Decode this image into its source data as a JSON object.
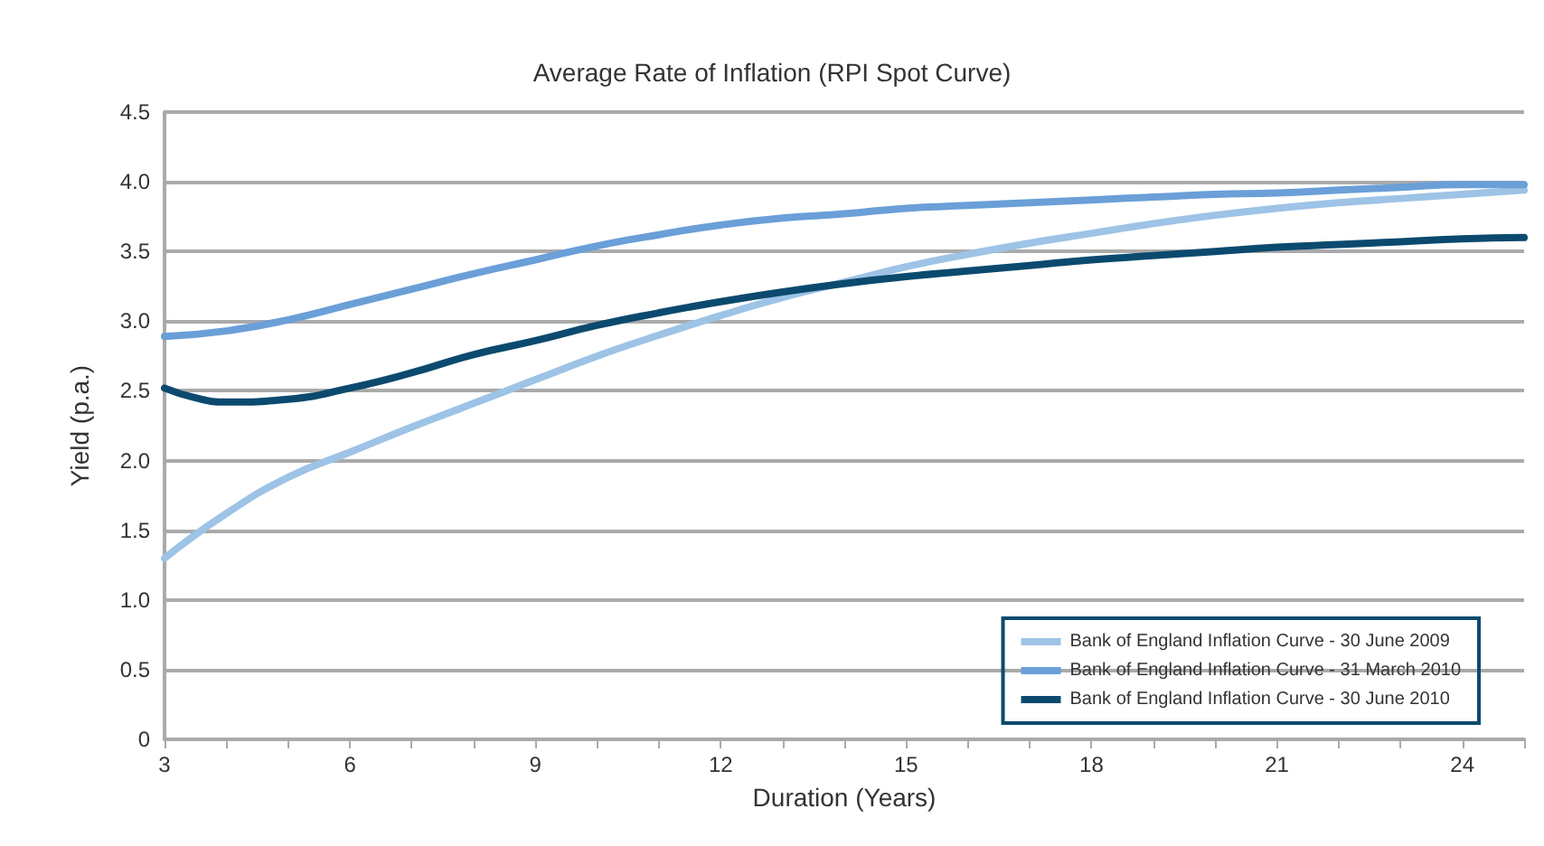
{
  "chart_data": {
    "type": "line",
    "title": "Average Rate of Inflation (RPI Spot Curve)",
    "xlabel": "Duration (Years)",
    "ylabel": "Yield (p.a.)",
    "xlim": [
      3,
      25
    ],
    "xticks": [
      3,
      {
        "value": 4,
        "label": null
      },
      {
        "value": 5,
        "label": null
      },
      6,
      {
        "value": 7,
        "label": null
      },
      {
        "value": 8,
        "label": null
      },
      9,
      {
        "value": 10,
        "label": null
      },
      {
        "value": 11,
        "label": null
      },
      12,
      {
        "value": 13,
        "label": null
      },
      {
        "value": 14,
        "label": null
      },
      15,
      {
        "value": 16,
        "label": null
      },
      {
        "value": 17,
        "label": null
      },
      18,
      {
        "value": 19,
        "label": null
      },
      {
        "value": 20,
        "label": null
      },
      21,
      {
        "value": 22,
        "label": null
      },
      {
        "value": 23,
        "label": null
      },
      24,
      {
        "value": 25,
        "label": null
      }
    ],
    "ylim": [
      0,
      4.5
    ],
    "yticks": [
      0,
      {
        "value": 0.5,
        "label": "0.5"
      },
      {
        "value": 1,
        "label": "1.0"
      },
      {
        "value": 1.5,
        "label": "1.5"
      },
      {
        "value": 2,
        "label": "2.0"
      },
      {
        "value": 2.5,
        "label": "2.5"
      },
      {
        "value": 3,
        "label": "3.0"
      },
      {
        "value": 3.5,
        "label": "3.5"
      },
      {
        "value": 4,
        "label": "4.0"
      },
      {
        "value": 4.5,
        "label": "4.5"
      }
    ],
    "grid": "y",
    "legend": "bottom right",
    "marker": "none",
    "line_style": "solid",
    "series": [
      {
        "name": "Bank of England Inflation Curve - 30 June 2009",
        "color": "#9dc3e6",
        "x": [
          3,
          4,
          5,
          6,
          7,
          8,
          9,
          10,
          11,
          12,
          13,
          14,
          15,
          16,
          17,
          18,
          19,
          20,
          21,
          22,
          23,
          24,
          25
        ],
        "values": [
          1.3,
          1.62,
          1.88,
          2.06,
          2.24,
          2.41,
          2.58,
          2.75,
          2.9,
          3.04,
          3.17,
          3.28,
          3.39,
          3.48,
          3.56,
          3.63,
          3.7,
          3.76,
          3.81,
          3.85,
          3.88,
          3.91,
          3.94
        ]
      },
      {
        "name": "Bank of England Inflation Curve - 31 March 2010",
        "color": "#6a9fd8",
        "x": [
          3,
          4,
          5,
          6,
          7,
          8,
          9,
          10,
          11,
          12,
          13,
          14,
          15,
          16,
          17,
          18,
          19,
          20,
          21,
          22,
          23,
          24,
          25
        ],
        "values": [
          2.89,
          2.93,
          3.01,
          3.12,
          3.23,
          3.34,
          3.44,
          3.54,
          3.62,
          3.69,
          3.74,
          3.77,
          3.81,
          3.83,
          3.85,
          3.87,
          3.89,
          3.91,
          3.92,
          3.94,
          3.96,
          3.98,
          3.98
        ]
      },
      {
        "name": "Bank of England Inflation Curve - 30 June 2010",
        "color": "#0b4a6e",
        "x": [
          3,
          3.5,
          4,
          5,
          6,
          7,
          8,
          9,
          10,
          11,
          12,
          13,
          14,
          15,
          16,
          17,
          18,
          19,
          20,
          21,
          22,
          23,
          24,
          25
        ],
        "values": [
          2.52,
          2.45,
          2.42,
          2.44,
          2.52,
          2.63,
          2.76,
          2.86,
          2.97,
          3.06,
          3.14,
          3.21,
          3.27,
          3.32,
          3.36,
          3.4,
          3.44,
          3.47,
          3.5,
          3.53,
          3.55,
          3.57,
          3.59,
          3.6
        ]
      }
    ]
  }
}
